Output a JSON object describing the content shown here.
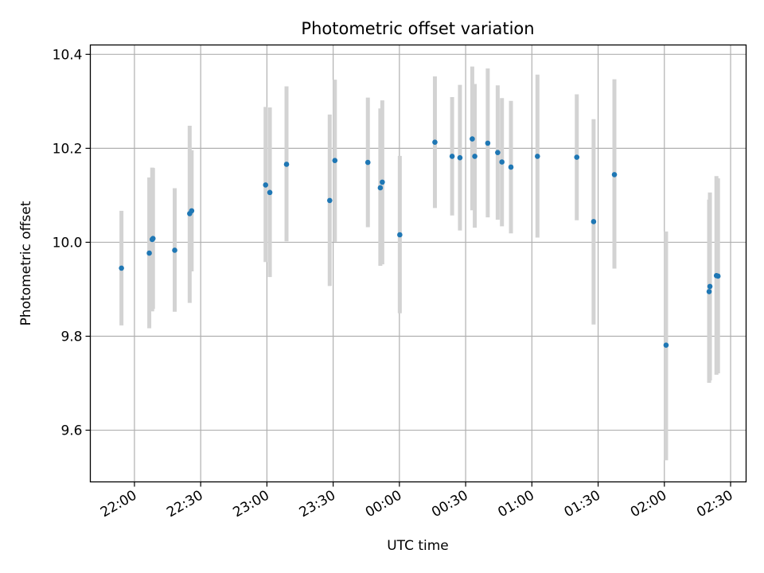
{
  "chart_data": {
    "type": "scatter",
    "title": "Photometric offset variation",
    "xlabel": "UTC time",
    "ylabel": "Photometric offset",
    "x_unit": "UTC time of night (hours past midnight; negative = before midnight)",
    "xlim": [
      -2.333,
      2.617
    ],
    "ylim": [
      9.49,
      10.42
    ],
    "grid": true,
    "x_ticks": [
      {
        "value": -2.0,
        "label": "22:00"
      },
      {
        "value": -1.5,
        "label": "22:30"
      },
      {
        "value": -1.0,
        "label": "23:00"
      },
      {
        "value": -0.5,
        "label": "23:30"
      },
      {
        "value": 0.0,
        "label": "00:00"
      },
      {
        "value": 0.5,
        "label": "00:30"
      },
      {
        "value": 1.0,
        "label": "01:00"
      },
      {
        "value": 1.5,
        "label": "01:30"
      },
      {
        "value": 2.0,
        "label": "02:00"
      },
      {
        "value": 2.5,
        "label": "02:30"
      }
    ],
    "y_ticks": [
      {
        "value": 9.6,
        "label": "9.6"
      },
      {
        "value": 9.8,
        "label": "9.8"
      },
      {
        "value": 10.0,
        "label": "10.0"
      },
      {
        "value": 10.2,
        "label": "10.2"
      },
      {
        "value": 10.4,
        "label": "10.4"
      }
    ],
    "marker_color": "#1f77b4",
    "errorbar_color": "#d3d3d3",
    "points": [
      {
        "x": -2.098,
        "y": 9.945,
        "yerr_low": 9.823,
        "yerr_high": 10.067
      },
      {
        "x": -1.888,
        "y": 9.977,
        "yerr_low": 9.817,
        "yerr_high": 10.138
      },
      {
        "x": -1.866,
        "y": 10.006,
        "yerr_low": 9.853,
        "yerr_high": 10.159
      },
      {
        "x": -1.86,
        "y": 10.008,
        "yerr_low": 9.858,
        "yerr_high": 10.158
      },
      {
        "x": -1.696,
        "y": 9.983,
        "yerr_low": 9.852,
        "yerr_high": 10.115
      },
      {
        "x": -1.583,
        "y": 10.061,
        "yerr_low": 9.871,
        "yerr_high": 10.248
      },
      {
        "x": -1.568,
        "y": 10.067,
        "yerr_low": 9.938,
        "yerr_high": 10.196
      },
      {
        "x": -1.01,
        "y": 10.122,
        "yerr_low": 9.958,
        "yerr_high": 10.288
      },
      {
        "x": -0.978,
        "y": 10.106,
        "yerr_low": 9.926,
        "yerr_high": 10.287
      },
      {
        "x": -0.852,
        "y": 10.166,
        "yerr_low": 10.002,
        "yerr_high": 10.332
      },
      {
        "x": -0.526,
        "y": 10.089,
        "yerr_low": 9.907,
        "yerr_high": 10.272
      },
      {
        "x": -0.487,
        "y": 10.174,
        "yerr_low": 10.001,
        "yerr_high": 10.346
      },
      {
        "x": -0.238,
        "y": 10.17,
        "yerr_low": 10.032,
        "yerr_high": 10.308
      },
      {
        "x": -0.144,
        "y": 10.116,
        "yerr_low": 9.95,
        "yerr_high": 10.285
      },
      {
        "x": -0.129,
        "y": 10.128,
        "yerr_low": 9.953,
        "yerr_high": 10.302
      },
      {
        "x": 0.003,
        "y": 10.016,
        "yerr_low": 9.849,
        "yerr_high": 10.184
      },
      {
        "x": 0.268,
        "y": 10.213,
        "yerr_low": 10.073,
        "yerr_high": 10.353
      },
      {
        "x": 0.398,
        "y": 10.183,
        "yerr_low": 10.057,
        "yerr_high": 10.309
      },
      {
        "x": 0.457,
        "y": 10.18,
        "yerr_low": 10.025,
        "yerr_high": 10.335
      },
      {
        "x": 0.55,
        "y": 10.22,
        "yerr_low": 10.068,
        "yerr_high": 10.374
      },
      {
        "x": 0.569,
        "y": 10.183,
        "yerr_low": 10.031,
        "yerr_high": 10.337
      },
      {
        "x": 0.667,
        "y": 10.211,
        "yerr_low": 10.053,
        "yerr_high": 10.37
      },
      {
        "x": 0.742,
        "y": 10.191,
        "yerr_low": 10.048,
        "yerr_high": 10.334
      },
      {
        "x": 0.774,
        "y": 10.171,
        "yerr_low": 10.034,
        "yerr_high": 10.307
      },
      {
        "x": 0.842,
        "y": 10.16,
        "yerr_low": 10.019,
        "yerr_high": 10.301
      },
      {
        "x": 1.042,
        "y": 10.183,
        "yerr_low": 10.01,
        "yerr_high": 10.357
      },
      {
        "x": 1.339,
        "y": 10.181,
        "yerr_low": 10.047,
        "yerr_high": 10.315
      },
      {
        "x": 1.466,
        "y": 10.044,
        "yerr_low": 9.825,
        "yerr_high": 10.262
      },
      {
        "x": 1.623,
        "y": 10.144,
        "yerr_low": 9.944,
        "yerr_high": 10.347
      },
      {
        "x": 2.013,
        "y": 9.781,
        "yerr_low": 9.536,
        "yerr_high": 10.023
      },
      {
        "x": 2.338,
        "y": 9.895,
        "yerr_low": 9.701,
        "yerr_high": 10.091
      },
      {
        "x": 2.344,
        "y": 9.906,
        "yerr_low": 9.706,
        "yerr_high": 10.106
      },
      {
        "x": 2.393,
        "y": 9.929,
        "yerr_low": 9.718,
        "yerr_high": 10.141
      },
      {
        "x": 2.405,
        "y": 9.928,
        "yerr_low": 9.721,
        "yerr_high": 10.136
      }
    ]
  }
}
